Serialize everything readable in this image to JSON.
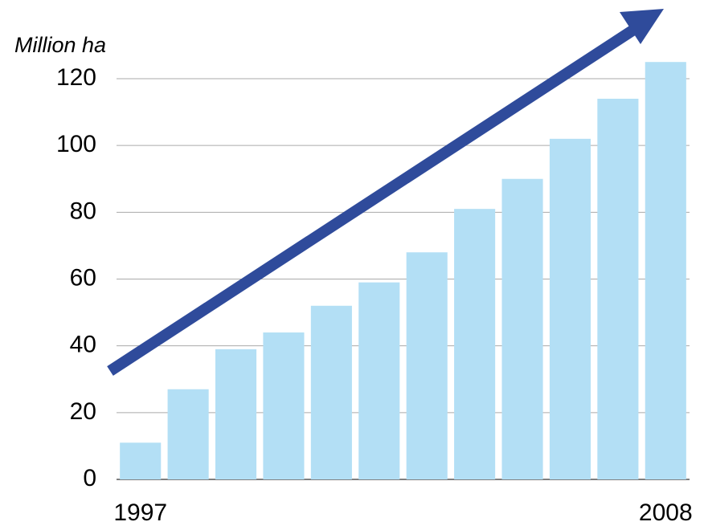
{
  "chart_data": {
    "type": "bar",
    "y_axis_label": "Million ha",
    "categories": [
      "1997",
      null,
      null,
      null,
      null,
      null,
      null,
      null,
      null,
      null,
      null,
      "2008"
    ],
    "values": [
      11,
      27,
      39,
      44,
      52,
      59,
      68,
      81,
      90,
      102,
      114,
      125
    ],
    "color": "#b3dff5",
    "ylim": [
      0,
      120
    ],
    "yticks": [
      0,
      20,
      40,
      60,
      80,
      100,
      120
    ],
    "grid": true
  }
}
